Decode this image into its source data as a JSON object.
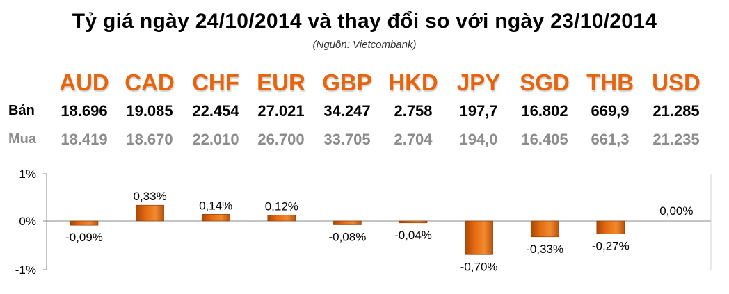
{
  "header": {
    "title": "Tỷ giá ngày 24/10/2014 và thay đổi so với ngày 23/10/2014",
    "source": "(Nguồn: Vietcombank)"
  },
  "table": {
    "sell_label": "Bán",
    "buy_label": "Mua",
    "currencies": [
      "AUD",
      "CAD",
      "CHF",
      "EUR",
      "GBP",
      "HKD",
      "JPY",
      "SGD",
      "THB",
      "USD"
    ],
    "sell": [
      "18.696",
      "19.085",
      "22.454",
      "27.021",
      "34.247",
      "2.758",
      "197,7",
      "16.802",
      "669,9",
      "21.285"
    ],
    "buy": [
      "18.419",
      "18.670",
      "22.010",
      "26.700",
      "33.705",
      "2.704",
      "194,0",
      "16.405",
      "661,3",
      "21.235"
    ]
  },
  "colors": {
    "currency_text": "#e8640c",
    "bar": "#e66b10",
    "bar_dark": "#a8480a",
    "axis": "#888888"
  },
  "chart_data": {
    "type": "bar",
    "categories": [
      "AUD",
      "CAD",
      "CHF",
      "EUR",
      "GBP",
      "HKD",
      "JPY",
      "SGD",
      "THB",
      "USD"
    ],
    "values": [
      -0.09,
      0.33,
      0.14,
      0.12,
      -0.08,
      -0.04,
      -0.7,
      -0.33,
      -0.27,
      0.0
    ],
    "data_labels": [
      "-0,09%",
      "0,33%",
      "0,14%",
      "0,12%",
      "-0,08%",
      "-0,04%",
      "-0,70%",
      "-0,33%",
      "-0,27%",
      "0,00%"
    ],
    "ylim": [
      -1,
      1
    ],
    "yticks": [
      "1%",
      "0%",
      "-1%"
    ],
    "grid": false,
    "legend": "none"
  }
}
